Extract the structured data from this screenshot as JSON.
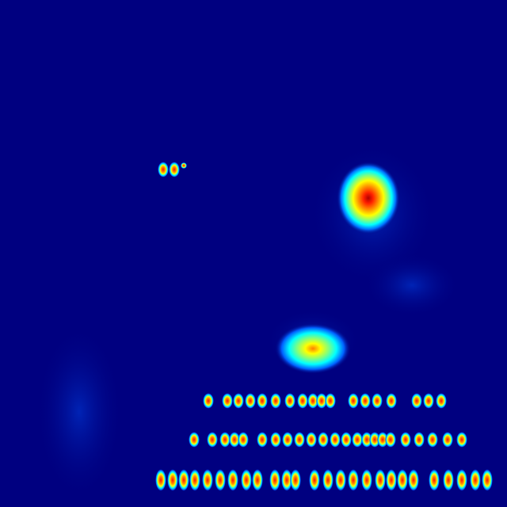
{
  "colormap": {
    "name": "jet",
    "background": "#000080",
    "stops": [
      "#00007F",
      "#0000FF",
      "#007FFF",
      "#00FFFF",
      "#7FFF7F",
      "#FFFF00",
      "#FF7F00",
      "#FF0000",
      "#7F0000"
    ]
  },
  "image": {
    "description_free": true
  }
}
